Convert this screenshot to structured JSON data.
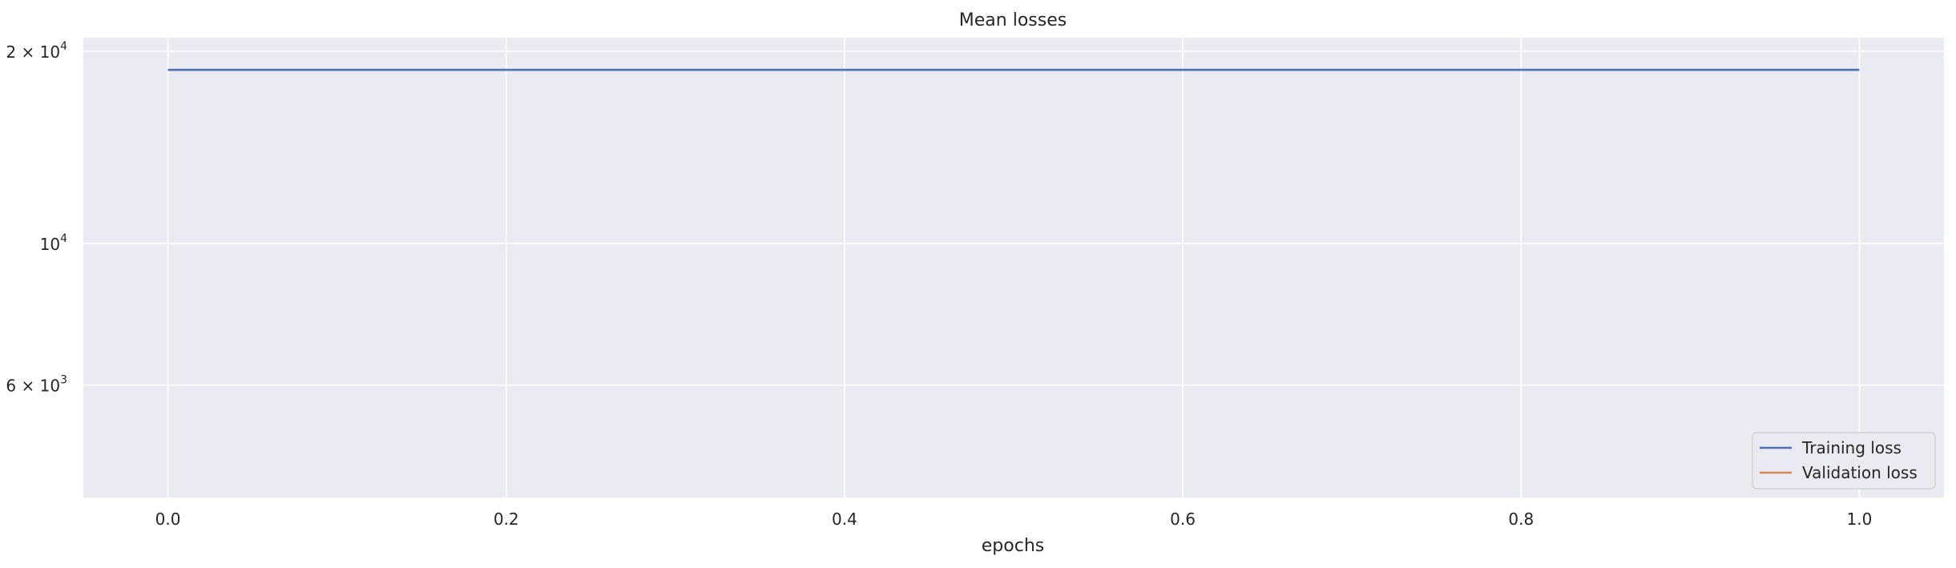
{
  "chart_data": {
    "type": "line",
    "title": "Mean losses",
    "xlabel": "epochs",
    "ylabel": "",
    "yscale": "log",
    "xlim": [
      -0.05,
      1.05
    ],
    "ylim": [
      4000,
      21000
    ],
    "grid": true,
    "legend_position": "bottom-right",
    "x_ticks": [
      {
        "value": 0.0,
        "label": "0.0"
      },
      {
        "value": 0.2,
        "label": "0.2"
      },
      {
        "value": 0.4,
        "label": "0.4"
      },
      {
        "value": 0.6,
        "label": "0.6"
      },
      {
        "value": 0.8,
        "label": "0.8"
      },
      {
        "value": 1.0,
        "label": "1.0"
      }
    ],
    "y_ticks": [
      {
        "value": 20000,
        "mantissa": "2 × 10",
        "exp": "4"
      },
      {
        "value": 10000,
        "mantissa": "10",
        "exp": "4"
      },
      {
        "value": 6000,
        "mantissa": "6 × 10",
        "exp": "3"
      }
    ],
    "series": [
      {
        "name": "Training loss",
        "color": "#4c72b0",
        "x": [
          0,
          1
        ],
        "y": [
          18700,
          18700
        ]
      },
      {
        "name": "Validation loss",
        "color": "#dd8452",
        "x": [],
        "y": []
      }
    ]
  }
}
